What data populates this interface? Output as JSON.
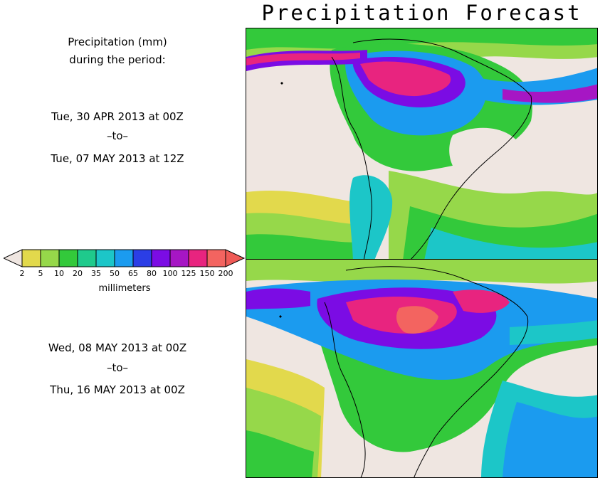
{
  "title": "Precipitation Forecast",
  "left_panel": {
    "heading_line1": "Precipitation (mm)",
    "heading_line2": "during the period:",
    "period1": {
      "start": "Tue, 30 APR 2013 at 00Z",
      "to": "–to–",
      "end": "Tue, 07 MAY 2013 at 12Z"
    },
    "period2": {
      "start": "Wed, 08 MAY 2013 at 00Z",
      "to": "–to–",
      "end": "Thu, 16 MAY 2013 at 00Z"
    }
  },
  "colorbar": {
    "ticks": [
      "2",
      "5",
      "10",
      "20",
      "35",
      "50",
      "65",
      "80",
      "100",
      "125",
      "150",
      "200"
    ],
    "units": "millimeters",
    "colors": [
      "#efe6e1",
      "#e2d94c",
      "#96d84a",
      "#33c93b",
      "#1fca8c",
      "#1cc6c8",
      "#1b9bef",
      "#2b3ee6",
      "#7b0ce4",
      "#a616c4",
      "#e8247f",
      "#f36460",
      "#ef5a56"
    ]
  },
  "maps": [
    {
      "name": "period-1",
      "region": "South America"
    },
    {
      "name": "period-2",
      "region": "South America"
    }
  ]
}
